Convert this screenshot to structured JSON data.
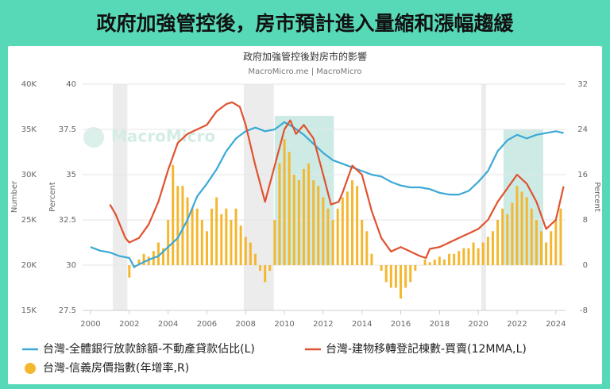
{
  "header": {
    "title": "政府加強管控後，房市預計進入量縮和漲幅趨緩"
  },
  "chart_data": {
    "type": "combo",
    "title": "政府加強管控後對房市的影響",
    "subtitle": "MacroMicro.me | MacroMicro",
    "watermark": "MacroMicro",
    "y3_label": "Number",
    "y_label": "Percent",
    "y2_label": "Percent",
    "xlim": [
      2000,
      2024.5
    ],
    "xticks": [
      2000,
      2002,
      2004,
      2006,
      2008,
      2010,
      2012,
      2014,
      2016,
      2018,
      2020,
      2022,
      2024
    ],
    "ylim": [
      27.5,
      40
    ],
    "yticks": [
      27.5,
      30,
      32.5,
      35,
      37.5,
      40
    ],
    "y3lim": [
      15000,
      40000
    ],
    "y3ticks": [
      {
        "value": 15000,
        "label": "15K"
      },
      {
        "value": 20000,
        "label": "20K"
      },
      {
        "value": 25000,
        "label": "25K"
      },
      {
        "value": 30000,
        "label": "30K"
      },
      {
        "value": 35000,
        "label": "35K"
      },
      {
        "value": 40000,
        "label": "40K"
      }
    ],
    "y2lim": [
      -8,
      32
    ],
    "y2ticks": [
      -8,
      0,
      8,
      16,
      24,
      32
    ],
    "grid": true,
    "bands": [
      {
        "x": [
          2001.15,
          2001.9
        ],
        "color": "#ececec"
      },
      {
        "x": [
          2007.9,
          2009.45
        ],
        "color": "#ececec"
      },
      {
        "x": [
          2020.15,
          2020.4
        ],
        "color": "#ececec"
      },
      {
        "x": [
          2009.5,
          2012.55
        ],
        "y": [
          0,
          26.4
        ],
        "color": "#cdeae5"
      },
      {
        "x": [
          2021.3,
          2023.35
        ],
        "y": [
          0,
          24
        ],
        "color": "#cdeae5"
      }
    ],
    "series": [
      {
        "name": "台灣-全體銀行放款餘額-不動產貸款佔比(L)",
        "type": "line",
        "axis": "y",
        "color": "#3aa9d6",
        "x": [
          2000,
          2000.5,
          2001,
          2001.5,
          2002,
          2002.25,
          2002.6,
          2003,
          2003.5,
          2004,
          2004.5,
          2005,
          2005.5,
          2006,
          2006.5,
          2007,
          2007.5,
          2008,
          2008.5,
          2009,
          2009.5,
          2010,
          2010.5,
          2011,
          2011.5,
          2012,
          2012.5,
          2013,
          2013.5,
          2014,
          2014.5,
          2015,
          2015.5,
          2016,
          2016.5,
          2017,
          2017.5,
          2018,
          2018.5,
          2019,
          2019.5,
          2020,
          2020.5,
          2021,
          2021.5,
          2022,
          2022.5,
          2023,
          2023.5,
          2024,
          2024.4
        ],
        "values": [
          31.0,
          30.8,
          30.7,
          30.5,
          30.4,
          29.9,
          30.1,
          30.3,
          30.5,
          31.0,
          31.5,
          32.5,
          33.8,
          34.5,
          35.3,
          36.3,
          37.0,
          37.4,
          37.6,
          37.4,
          37.5,
          37.9,
          37.6,
          37.2,
          36.7,
          36.2,
          35.8,
          35.6,
          35.4,
          35.2,
          35.0,
          34.9,
          34.6,
          34.4,
          34.3,
          34.3,
          34.2,
          34.0,
          33.9,
          33.9,
          34.1,
          34.6,
          35.2,
          36.3,
          36.9,
          37.2,
          37.0,
          37.2,
          37.3,
          37.4,
          37.3
        ]
      },
      {
        "name": "台灣-建物移轉登記棟數-買賣(12MMA,L)",
        "type": "line",
        "axis": "y3",
        "color": "#e0522f",
        "x": [
          2001,
          2001.3,
          2001.8,
          2002,
          2002.5,
          2003,
          2003.5,
          2004,
          2004.5,
          2005,
          2005.5,
          2006,
          2006.5,
          2007,
          2007.3,
          2007.7,
          2008,
          2008.5,
          2009,
          2009.5,
          2010,
          2010.3,
          2010.6,
          2011,
          2011.5,
          2012,
          2012.4,
          2012.8,
          2013,
          2013.5,
          2014,
          2014.5,
          2015,
          2015.5,
          2016,
          2016.5,
          2017,
          2017.3,
          2017.5,
          2018,
          2018.5,
          2019,
          2019.5,
          2020,
          2020.5,
          2021,
          2021.5,
          2022,
          2022.5,
          2023,
          2023.5,
          2024,
          2024.4
        ],
        "values": [
          26700,
          25600,
          23000,
          22500,
          23000,
          24500,
          27000,
          30500,
          33500,
          34500,
          35000,
          35500,
          37000,
          37800,
          38000,
          37500,
          35500,
          31000,
          27000,
          31000,
          35000,
          36000,
          34500,
          35500,
          34000,
          30000,
          26700,
          27000,
          28000,
          31000,
          30000,
          26000,
          23000,
          21500,
          22000,
          21500,
          21000,
          20800,
          21800,
          22000,
          22500,
          23000,
          23500,
          24000,
          25000,
          27000,
          28500,
          30000,
          29000,
          27000,
          24000,
          25000,
          28700
        ]
      },
      {
        "name": "台灣-信義房價指數(年增率,R)",
        "type": "bar",
        "axis": "y2",
        "color": "#f4b730",
        "x": [
          2002,
          2002.25,
          2002.5,
          2002.75,
          2003,
          2003.25,
          2003.5,
          2003.75,
          2004,
          2004.25,
          2004.5,
          2004.75,
          2005,
          2005.25,
          2005.5,
          2005.75,
          2006,
          2006.25,
          2006.5,
          2006.75,
          2007,
          2007.25,
          2007.5,
          2007.75,
          2008,
          2008.25,
          2008.5,
          2008.75,
          2009,
          2009.25,
          2009.5,
          2009.75,
          2010,
          2010.25,
          2010.5,
          2010.75,
          2011,
          2011.25,
          2011.5,
          2011.75,
          2012,
          2012.25,
          2012.5,
          2012.75,
          2013,
          2013.25,
          2013.5,
          2013.75,
          2014,
          2014.25,
          2014.5,
          2014.75,
          2015,
          2015.25,
          2015.5,
          2015.75,
          2016,
          2016.25,
          2016.5,
          2016.75,
          2017,
          2017.25,
          2017.5,
          2017.75,
          2018,
          2018.25,
          2018.5,
          2018.75,
          2019,
          2019.25,
          2019.5,
          2019.75,
          2020,
          2020.25,
          2020.5,
          2020.75,
          2021,
          2021.25,
          2021.5,
          2021.75,
          2022,
          2022.25,
          2022.5,
          2022.75,
          2023,
          2023.25,
          2023.5,
          2023.75,
          2024,
          2024.25
        ],
        "values": [
          -2.2,
          -0.5,
          1,
          2,
          1.5,
          2.5,
          4,
          3,
          8,
          17.7,
          14,
          14,
          12,
          10,
          10,
          8,
          6,
          10,
          12,
          9,
          10,
          8,
          10,
          7,
          5,
          4,
          2,
          -1,
          -3,
          -1,
          8,
          18,
          22.3,
          20,
          16,
          15,
          17,
          18,
          15,
          14,
          12,
          10,
          8,
          10,
          12,
          13,
          15,
          14,
          8,
          6,
          2,
          0,
          -1,
          -3,
          -4,
          -4,
          -5.9,
          -4,
          -3,
          -1,
          0,
          1,
          0.5,
          1,
          1.5,
          1,
          2,
          2,
          2.5,
          3,
          3,
          4,
          3,
          4,
          5,
          6,
          8,
          10,
          9,
          11,
          14,
          13,
          12,
          10,
          8,
          6,
          4,
          6,
          8,
          10
        ]
      }
    ],
    "legend": "bottom"
  }
}
